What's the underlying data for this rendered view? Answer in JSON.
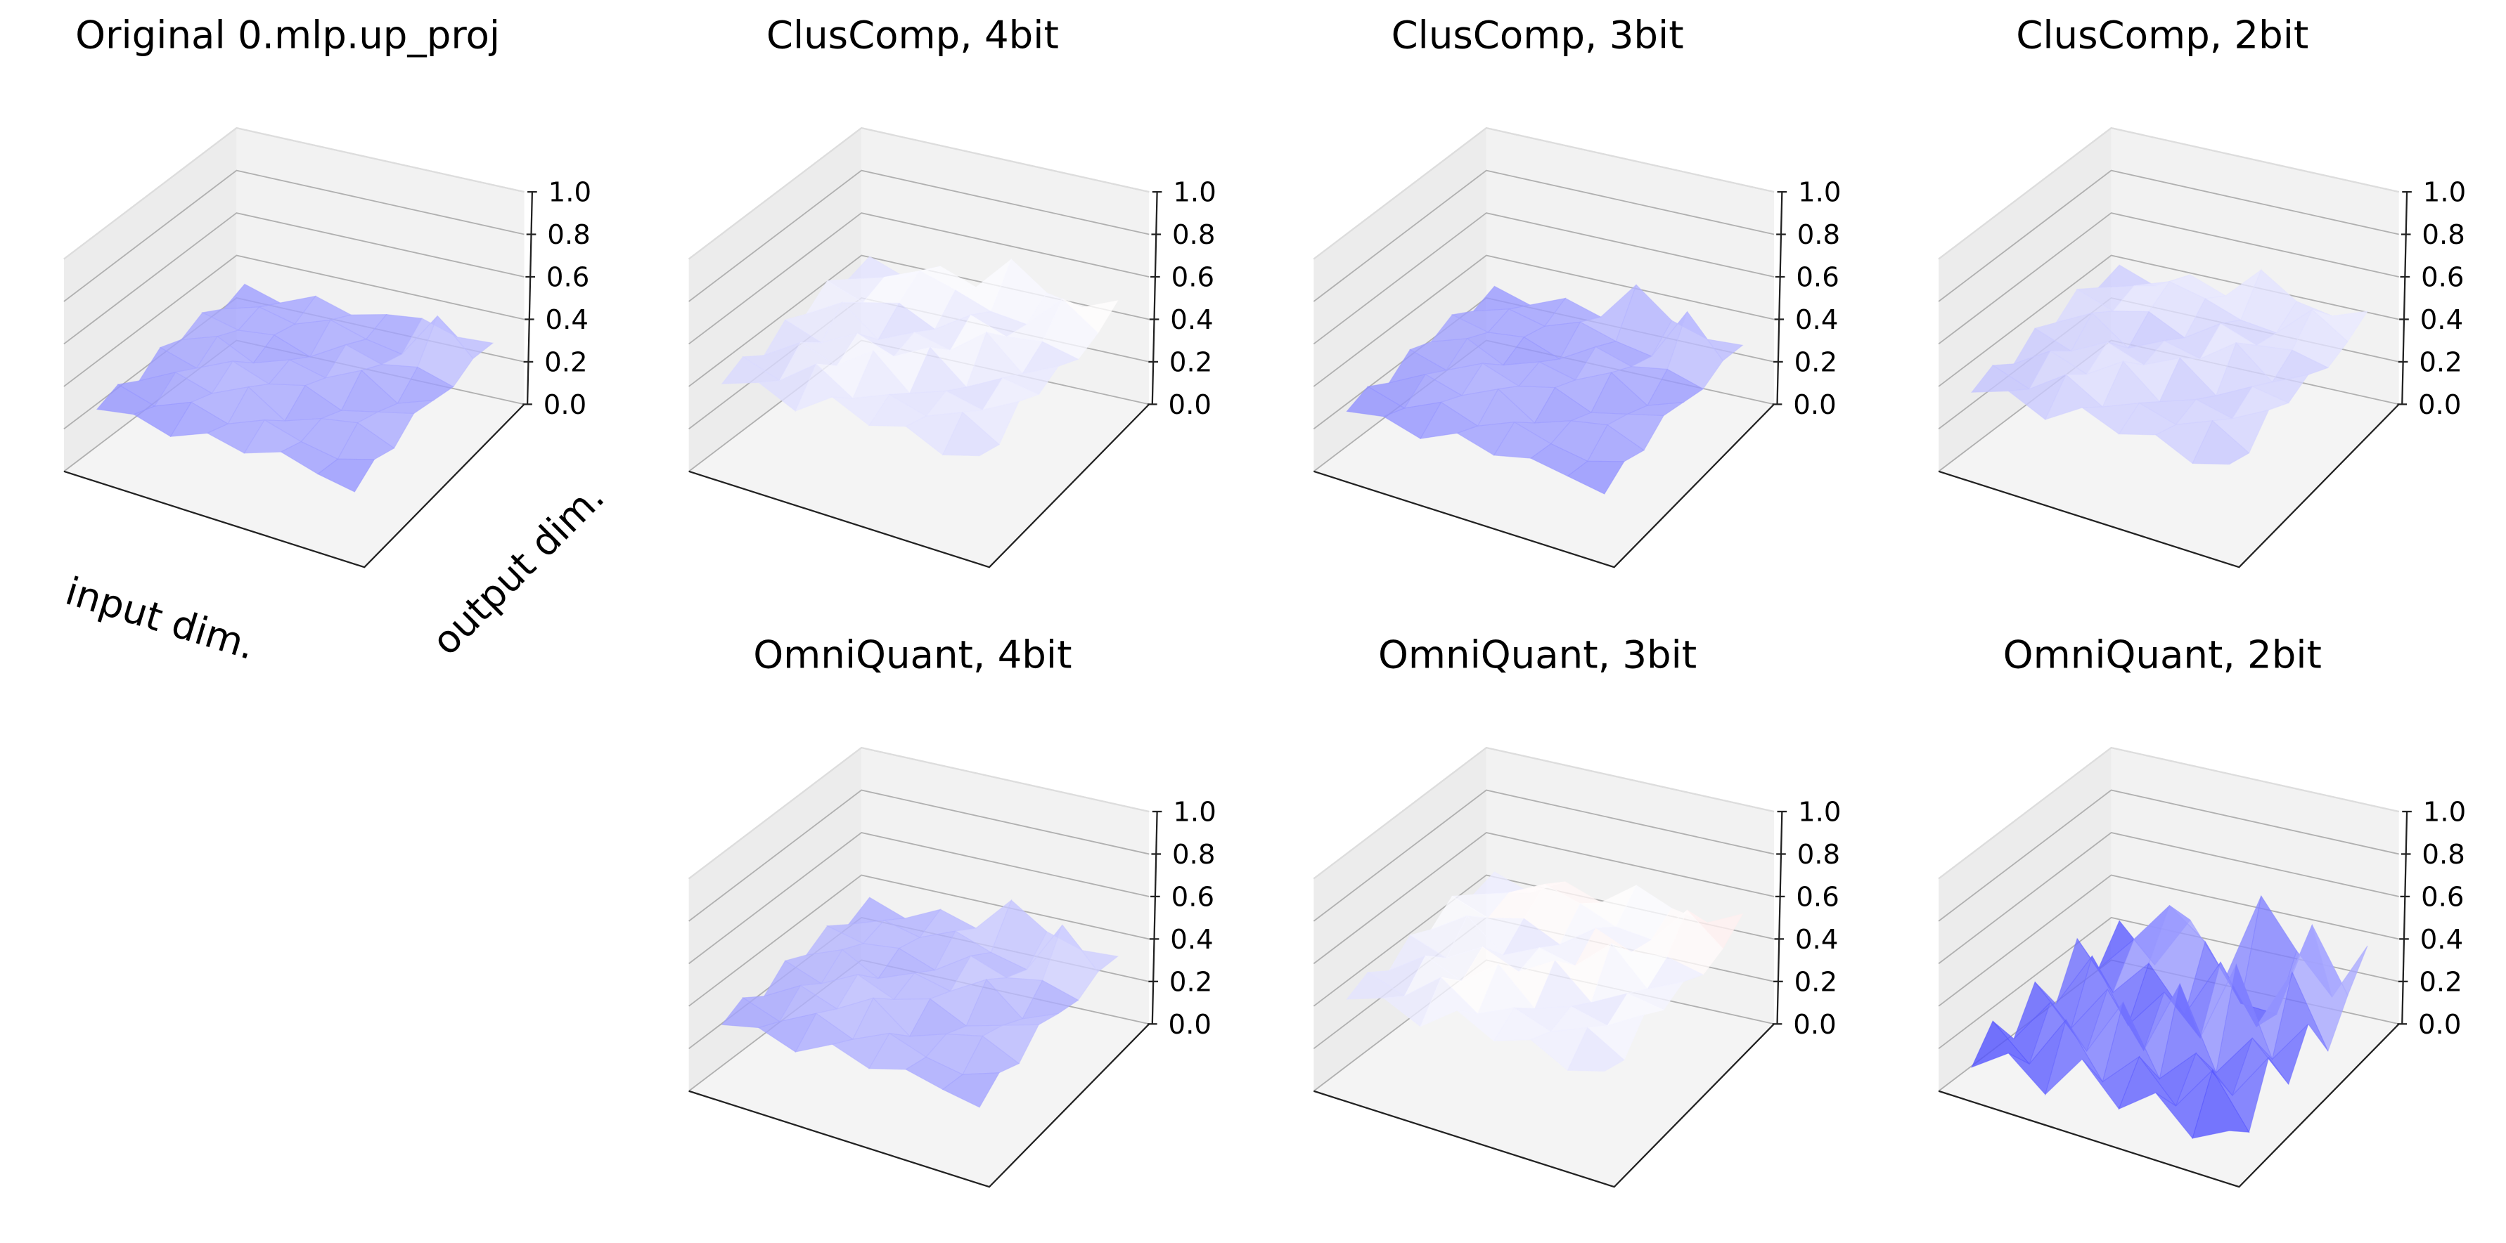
{
  "chart_data": [
    {
      "type": "surface",
      "title": "Original 0.mlp.up_proj",
      "xlabel": "input dim.",
      "ylabel": "output dim.",
      "colormap": "bwr",
      "zlim": [
        0,
        1
      ],
      "zticks": [
        {
          "value": 0,
          "label": "0.0"
        },
        0.2,
        0.4,
        0.6,
        0.8,
        {
          "value": 1,
          "label": "1.0"
        }
      ],
      "z": [
        [
          0.28,
          0.31,
          0.26,
          0.33,
          0.29,
          0.35,
          0.3,
          0.27
        ],
        [
          0.32,
          0.27,
          0.34,
          0.29,
          0.36,
          0.31,
          0.28,
          0.33
        ],
        [
          0.26,
          0.35,
          0.3,
          0.38,
          0.27,
          0.33,
          0.36,
          0.29
        ],
        [
          0.34,
          0.29,
          0.37,
          0.31,
          0.35,
          0.28,
          0.32,
          0.36
        ],
        [
          0.3,
          0.36,
          0.28,
          0.34,
          0.3,
          0.38,
          0.27,
          0.33
        ],
        [
          0.35,
          0.31,
          0.33,
          0.27,
          0.37,
          0.32,
          0.35,
          0.3
        ],
        [
          0.29,
          0.34,
          0.3,
          0.36,
          0.31,
          0.28,
          0.5,
          0.34
        ],
        [
          0.33,
          0.28,
          0.35,
          0.3,
          0.34,
          0.36,
          0.31,
          0.32
        ]
      ]
    },
    {
      "type": "surface",
      "title": "ClusComp, 4bit",
      "colormap": "bwr",
      "zlim": [
        0,
        1
      ],
      "zticks": [
        {
          "value": 0,
          "label": "0.0"
        },
        0.2,
        0.4,
        0.6,
        0.8,
        {
          "value": 1,
          "label": "1.0"
        }
      ],
      "z": [
        [
          0.4,
          0.46,
          0.38,
          0.5,
          0.42,
          0.47,
          0.39,
          0.44
        ],
        [
          0.45,
          0.39,
          0.52,
          0.41,
          0.48,
          0.43,
          0.5,
          0.4
        ],
        [
          0.38,
          0.49,
          0.43,
          0.55,
          0.4,
          0.46,
          0.42,
          0.51
        ],
        [
          0.47,
          0.41,
          0.5,
          0.44,
          0.53,
          0.39,
          0.48,
          0.45
        ],
        [
          0.42,
          0.52,
          0.39,
          0.47,
          0.43,
          0.56,
          0.41,
          0.49
        ],
        [
          0.5,
          0.44,
          0.48,
          0.4,
          0.51,
          0.45,
          0.47,
          0.43
        ],
        [
          0.43,
          0.48,
          0.55,
          0.5,
          0.44,
          0.42,
          0.58,
          0.46
        ],
        [
          0.46,
          0.4,
          0.49,
          0.43,
          0.6,
          0.48,
          0.45,
          0.52
        ]
      ]
    },
    {
      "type": "surface",
      "title": "ClusComp, 3bit",
      "colormap": "bwr",
      "zlim": [
        0,
        1
      ],
      "zticks": [
        {
          "value": 0,
          "label": "0.0"
        },
        0.2,
        0.4,
        0.6,
        0.8,
        {
          "value": 1,
          "label": "1.0"
        }
      ],
      "z": [
        [
          0.27,
          0.3,
          0.25,
          0.33,
          0.28,
          0.32,
          0.29,
          0.26
        ],
        [
          0.31,
          0.26,
          0.34,
          0.28,
          0.35,
          0.3,
          0.27,
          0.32
        ],
        [
          0.25,
          0.34,
          0.29,
          0.37,
          0.26,
          0.32,
          0.35,
          0.28
        ],
        [
          0.33,
          0.28,
          0.36,
          0.3,
          0.34,
          0.27,
          0.31,
          0.35
        ],
        [
          0.29,
          0.35,
          0.27,
          0.33,
          0.29,
          0.37,
          0.26,
          0.32
        ],
        [
          0.34,
          0.3,
          0.32,
          0.26,
          0.36,
          0.31,
          0.34,
          0.29
        ],
        [
          0.28,
          0.33,
          0.29,
          0.35,
          0.3,
          0.27,
          0.52,
          0.33
        ],
        [
          0.32,
          0.27,
          0.34,
          0.29,
          0.48,
          0.35,
          0.3,
          0.31
        ]
      ]
    },
    {
      "type": "surface",
      "title": "ClusComp, 2bit",
      "colormap": "bwr",
      "zlim": [
        0,
        1
      ],
      "zticks": [
        {
          "value": 0,
          "label": "0.0"
        },
        0.2,
        0.4,
        0.6,
        0.8,
        {
          "value": 1,
          "label": "1.0"
        }
      ],
      "z": [
        [
          0.36,
          0.42,
          0.34,
          0.45,
          0.38,
          0.43,
          0.35,
          0.4
        ],
        [
          0.41,
          0.35,
          0.47,
          0.37,
          0.44,
          0.39,
          0.46,
          0.36
        ],
        [
          0.34,
          0.45,
          0.39,
          0.5,
          0.36,
          0.42,
          0.38,
          0.47
        ],
        [
          0.43,
          0.37,
          0.46,
          0.4,
          0.48,
          0.35,
          0.44,
          0.41
        ],
        [
          0.38,
          0.47,
          0.35,
          0.43,
          0.39,
          0.51,
          0.37,
          0.45
        ],
        [
          0.46,
          0.4,
          0.44,
          0.36,
          0.47,
          0.41,
          0.43,
          0.39
        ],
        [
          0.39,
          0.44,
          0.5,
          0.46,
          0.4,
          0.38,
          0.53,
          0.42
        ],
        [
          0.42,
          0.36,
          0.45,
          0.39,
          0.55,
          0.44,
          0.41,
          0.47
        ]
      ]
    },
    {
      "type": "surface",
      "title": "OmniQuant, 4bit",
      "colormap": "bwr",
      "zlim": [
        0,
        1
      ],
      "zticks": [
        {
          "value": 0,
          "label": "0.0"
        },
        0.2,
        0.4,
        0.6,
        0.8,
        {
          "value": 1,
          "label": "1.0"
        }
      ],
      "z": [
        [
          0.3,
          0.34,
          0.28,
          0.37,
          0.31,
          0.36,
          0.32,
          0.29
        ],
        [
          0.35,
          0.29,
          0.38,
          0.31,
          0.39,
          0.33,
          0.3,
          0.36
        ],
        [
          0.28,
          0.38,
          0.32,
          0.42,
          0.29,
          0.35,
          0.39,
          0.31
        ],
        [
          0.37,
          0.31,
          0.4,
          0.33,
          0.38,
          0.3,
          0.35,
          0.4
        ],
        [
          0.32,
          0.39,
          0.3,
          0.37,
          0.33,
          0.43,
          0.29,
          0.36
        ],
        [
          0.38,
          0.34,
          0.36,
          0.3,
          0.41,
          0.35,
          0.38,
          0.33
        ],
        [
          0.31,
          0.37,
          0.33,
          0.4,
          0.34,
          0.3,
          0.55,
          0.37
        ],
        [
          0.36,
          0.3,
          0.38,
          0.33,
          0.5,
          0.39,
          0.34,
          0.35
        ]
      ]
    },
    {
      "type": "surface",
      "title": "OmniQuant, 3bit",
      "colormap": "bwr",
      "zlim": [
        0,
        1
      ],
      "zticks": [
        {
          "value": 0,
          "label": "0.0"
        },
        0.2,
        0.4,
        0.6,
        0.8,
        {
          "value": 1,
          "label": "1.0"
        }
      ],
      "z": [
        [
          0.42,
          0.48,
          0.4,
          0.53,
          0.44,
          0.5,
          0.41,
          0.46
        ],
        [
          0.47,
          0.41,
          0.55,
          0.43,
          0.51,
          0.45,
          0.52,
          0.42
        ],
        [
          0.4,
          0.52,
          0.45,
          0.58,
          0.42,
          0.48,
          0.44,
          0.54
        ],
        [
          0.49,
          0.43,
          0.53,
          0.46,
          0.56,
          0.41,
          0.5,
          0.47
        ],
        [
          0.44,
          0.55,
          0.41,
          0.49,
          0.45,
          0.6,
          0.43,
          0.51
        ],
        [
          0.52,
          0.46,
          0.5,
          0.42,
          0.54,
          0.47,
          0.49,
          0.45
        ],
        [
          0.45,
          0.5,
          0.58,
          0.53,
          0.46,
          0.44,
          0.62,
          0.48
        ],
        [
          0.48,
          0.42,
          0.51,
          0.45,
          0.57,
          0.5,
          0.47,
          0.55
        ]
      ]
    },
    {
      "type": "surface",
      "title": "OmniQuant, 2bit",
      "colormap": "bwr",
      "zlim": [
        0,
        1
      ],
      "zticks": [
        {
          "value": 0,
          "label": "0.0"
        },
        0.2,
        0.4,
        0.6,
        0.8,
        {
          "value": 1,
          "label": "1.0"
        }
      ],
      "z": [
        [
          0.1,
          0.22,
          0.08,
          0.3,
          0.12,
          0.25,
          0.09,
          0.18
        ],
        [
          0.24,
          0.09,
          0.35,
          0.11,
          0.28,
          0.1,
          0.32,
          0.08
        ],
        [
          0.08,
          0.3,
          0.12,
          0.4,
          0.09,
          0.26,
          0.11,
          0.34
        ],
        [
          0.27,
          0.1,
          0.33,
          0.09,
          0.45,
          0.08,
          0.29,
          0.12
        ],
        [
          0.09,
          0.36,
          0.08,
          0.28,
          0.11,
          0.5,
          0.1,
          0.31
        ],
        [
          0.32,
          0.11,
          0.29,
          0.09,
          0.38,
          0.12,
          0.42,
          0.09
        ],
        [
          0.1,
          0.28,
          0.48,
          0.35,
          0.1,
          0.09,
          0.55,
          0.26
        ],
        [
          0.25,
          0.08,
          0.33,
          0.1,
          0.52,
          0.3,
          0.12,
          0.4
        ]
      ]
    }
  ]
}
